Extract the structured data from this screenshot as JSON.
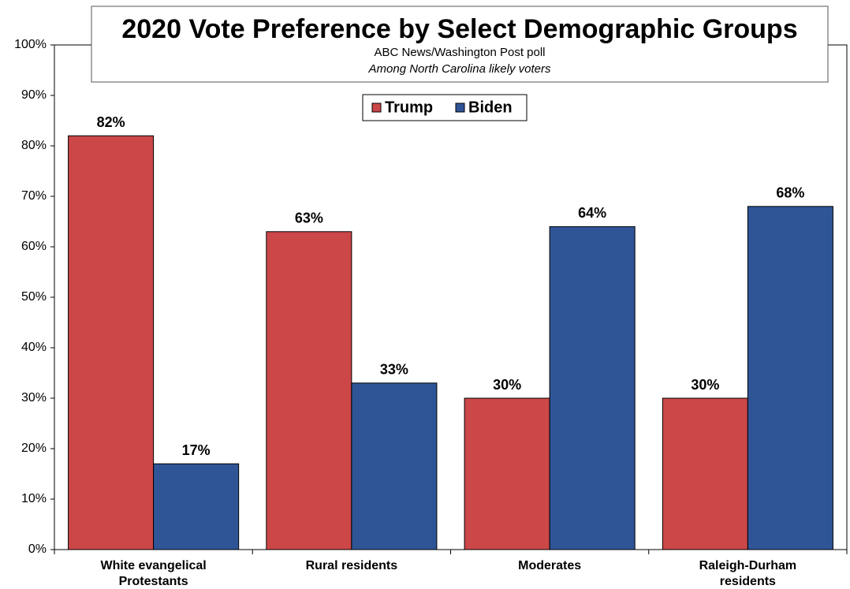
{
  "chart_data": {
    "type": "bar",
    "title": "2020 Vote Preference by Select Demographic Groups",
    "subtitle": [
      "ABC News/Washington Post poll",
      "Among North Carolina likely voters"
    ],
    "categories": [
      "White evangelical Protestants",
      "Rural residents",
      "Moderates",
      "Raleigh-Durham residents"
    ],
    "series": [
      {
        "name": "Trump",
        "color": "#cb4748",
        "values": [
          82,
          63,
          30,
          30
        ],
        "value_labels": [
          "82%",
          "63%",
          "30%",
          "30%"
        ]
      },
      {
        "name": "Biden",
        "color": "#2f5597",
        "values": [
          17,
          33,
          64,
          68
        ],
        "value_labels": [
          "17%",
          "33%",
          "64%",
          "68%"
        ]
      }
    ],
    "ylim": [
      0,
      100
    ],
    "yticks": [
      {
        "value": 0,
        "label": "0%"
      },
      {
        "value": 10,
        "label": "10%"
      },
      {
        "value": 20,
        "label": "20%"
      },
      {
        "value": 30,
        "label": "30%"
      },
      {
        "value": 40,
        "label": "40%"
      },
      {
        "value": 50,
        "label": "50%"
      },
      {
        "value": 60,
        "label": "60%"
      },
      {
        "value": 70,
        "label": "70%"
      },
      {
        "value": 80,
        "label": "80%"
      },
      {
        "value": 90,
        "label": "90%"
      },
      {
        "value": 100,
        "label": "100%"
      }
    ],
    "legend": "top"
  }
}
